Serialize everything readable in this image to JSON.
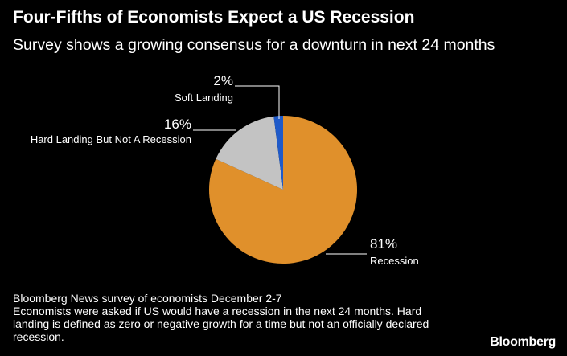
{
  "title": "Four-Fifths of Economists Expect a US Recession",
  "subtitle": "Survey shows a growing consensus for a downturn in next 24 months",
  "chart_data": {
    "type": "pie",
    "slices": [
      {
        "label": "Recession",
        "value": 81,
        "display": "81%",
        "color": "#e0902b"
      },
      {
        "label": "Hard Landing But Not A Recession",
        "value": 16,
        "display": "16%",
        "color": "#c3c3c3"
      },
      {
        "label": "Soft Landing",
        "value": 2,
        "display": "2%",
        "color": "#1f5ac9"
      }
    ]
  },
  "notes": [
    "Bloomberg News survey of economists December 2-7",
    "Economists were asked if US would have a recession in the next 24 months. Hard landing is defined as zero or negative growth for a time but not an officially declared recession."
  ],
  "brand": "Bloomberg"
}
